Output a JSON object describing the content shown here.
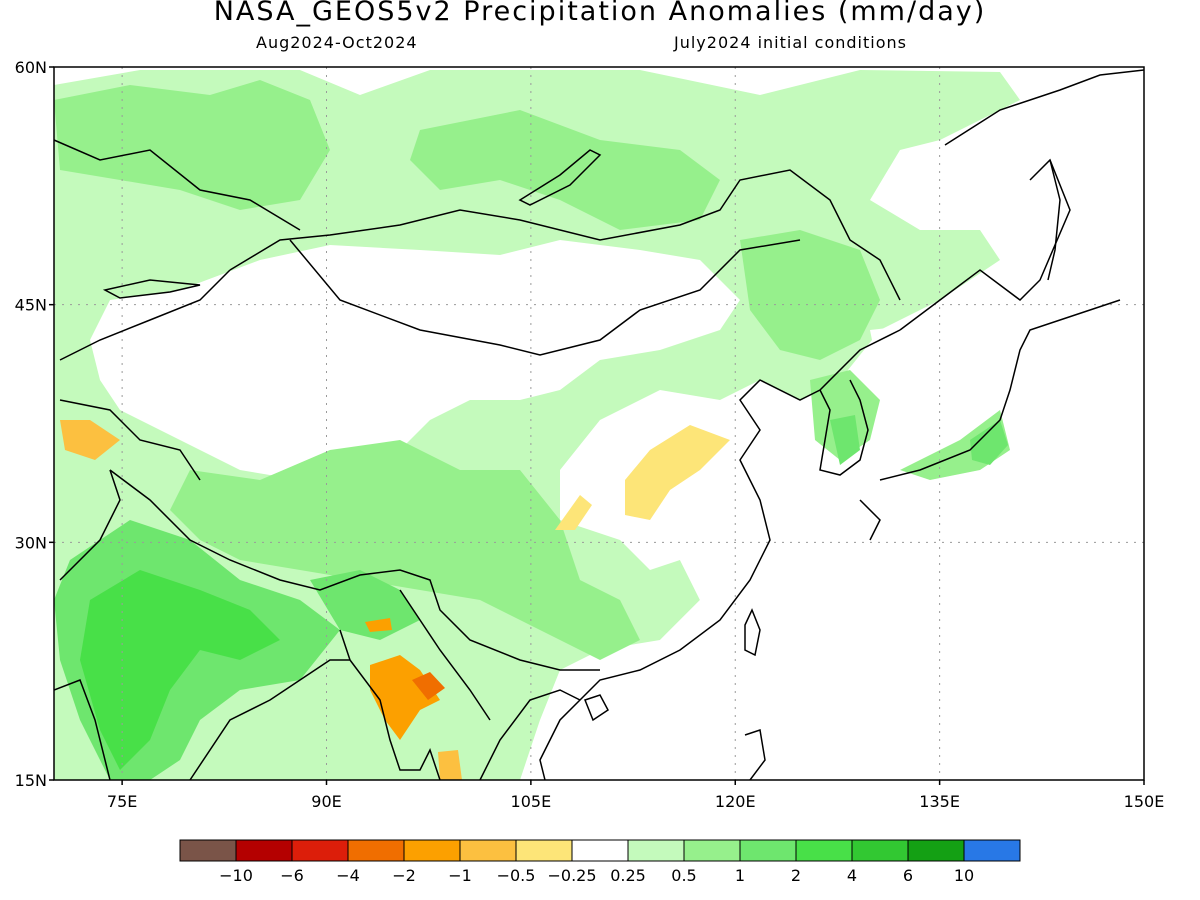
{
  "map": {
    "title": "NASA_GEOS5v2 Precipitation Anomalies (mm/day)",
    "subtitle_left": "Aug2024-Oct2024",
    "subtitle_right": "July2024 initial conditions",
    "lat_labels": [
      "60N",
      "45N",
      "30N",
      "15N"
    ],
    "lat_values": [
      60,
      45,
      30,
      15
    ],
    "lon_labels": [
      "75E",
      "90E",
      "105E",
      "120E",
      "135E",
      "150E"
    ],
    "lon_values": [
      75,
      90,
      105,
      120,
      135,
      150
    ],
    "extent": {
      "lon_min": 70,
      "lon_max": 150,
      "lat_min": 15,
      "lat_max": 60
    },
    "gridlines": "dotted"
  },
  "colorbar": {
    "bins": [
      {
        "color": "#7a5448"
      },
      {
        "color": "#b40000"
      },
      {
        "color": "#dc1e0a"
      },
      {
        "color": "#f06e00"
      },
      {
        "color": "#fca000"
      },
      {
        "color": "#fcc040"
      },
      {
        "color": "#fde578"
      },
      {
        "color": "#ffffff"
      },
      {
        "color": "#c4fabc"
      },
      {
        "color": "#96f08c"
      },
      {
        "color": "#6ee66e"
      },
      {
        "color": "#48e048"
      },
      {
        "color": "#32c832"
      },
      {
        "color": "#14a014"
      },
      {
        "color": "#2878e6"
      }
    ],
    "labels": [
      "−10",
      "−6",
      "−4",
      "−2",
      "−1",
      "−0.5",
      "−0.25",
      "0.25",
      "0.5",
      "1",
      "2",
      "4",
      "6",
      "10"
    ]
  },
  "regions": [
    {
      "name": "siberia-positive",
      "level": "0.5",
      "color": "#c4fabc"
    },
    {
      "name": "india-positive",
      "level": "2",
      "color": "#48e048"
    },
    {
      "name": "tibet-positive",
      "level": "1",
      "color": "#96f08c"
    },
    {
      "name": "north-china-negative",
      "level": "-0.5",
      "color": "#fde578"
    },
    {
      "name": "indochina-negative",
      "level": "-2",
      "color": "#f06e00"
    },
    {
      "name": "japan-positive",
      "level": "2",
      "color": "#6ee66e"
    }
  ]
}
